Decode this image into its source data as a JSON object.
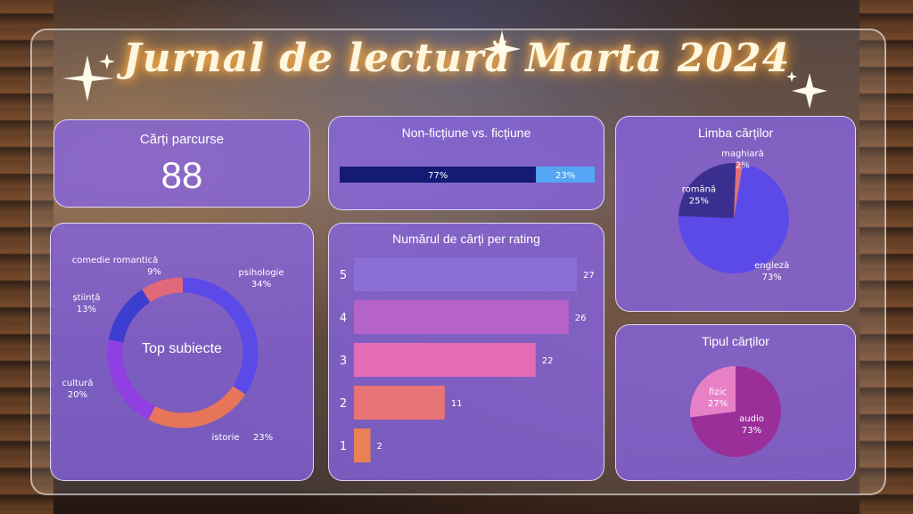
{
  "title": "Jurnal de lectură Marta 2024",
  "cards": {
    "books_read": {
      "label": "Cărți parcurse",
      "value": "88"
    },
    "nonfiction": {
      "label": "Non-ficțiune vs. ficțiune"
    },
    "language": {
      "label": "Limba cărților"
    },
    "topics": {
      "label": "Top subiecte"
    },
    "ratings": {
      "label": "Numărul de cărți per rating"
    },
    "format": {
      "label": "Tipul cărților"
    }
  },
  "colors": {
    "card_bg": "#8664e4",
    "nonfiction_dark": "#131b72",
    "nonfiction_light": "#54a6f4",
    "lang_english": "#5b4ae8",
    "lang_romanian": "#3a2f8e",
    "lang_hungarian": "#e0707a",
    "topic_psihologie": "#5b4ae8",
    "topic_istorie": "#e6755a",
    "topic_cultura": "#8f3fe2",
    "topic_stiinta": "#3d3ed0",
    "topic_comedie": "#e06a7a",
    "rating_5": "#8b6fd6",
    "rating_4": "#b563c9",
    "rating_3": "#e46bb6",
    "rating_2": "#e87476",
    "rating_1": "#ea8154",
    "format_audio": "#9a2f9a",
    "format_fizic": "#e880c8"
  },
  "chart_data": [
    {
      "type": "bar",
      "title": "Non-ficțiune vs. ficțiune",
      "categories": [
        "",
        ""
      ],
      "values": [
        77,
        23
      ],
      "value_labels": [
        "77%",
        "23%"
      ],
      "stacked": true,
      "orientation": "horizontal"
    },
    {
      "type": "pie",
      "title": "Limba cărților",
      "categories": [
        "engleză",
        "română",
        "maghiară"
      ],
      "values": [
        73,
        25,
        2
      ],
      "value_labels": [
        "73%",
        "25%",
        "2%"
      ]
    },
    {
      "type": "pie",
      "title": "Top subiecte",
      "donut": true,
      "categories": [
        "psihologie",
        "istorie",
        "cultură",
        "știință",
        "comedie romantică"
      ],
      "values": [
        34,
        23,
        20,
        13,
        9
      ],
      "value_labels": [
        "34%",
        "23%",
        "20%",
        "13%",
        "9%"
      ]
    },
    {
      "type": "bar",
      "title": "Numărul de cărți per rating",
      "orientation": "horizontal",
      "categories": [
        "5",
        "4",
        "3",
        "2",
        "1"
      ],
      "values": [
        27,
        26,
        22,
        11,
        2
      ],
      "xlim": [
        0,
        27
      ]
    },
    {
      "type": "pie",
      "title": "Tipul cărților",
      "categories": [
        "audio",
        "fizic"
      ],
      "values": [
        73,
        27
      ],
      "value_labels": [
        "73%",
        "27%"
      ]
    }
  ]
}
